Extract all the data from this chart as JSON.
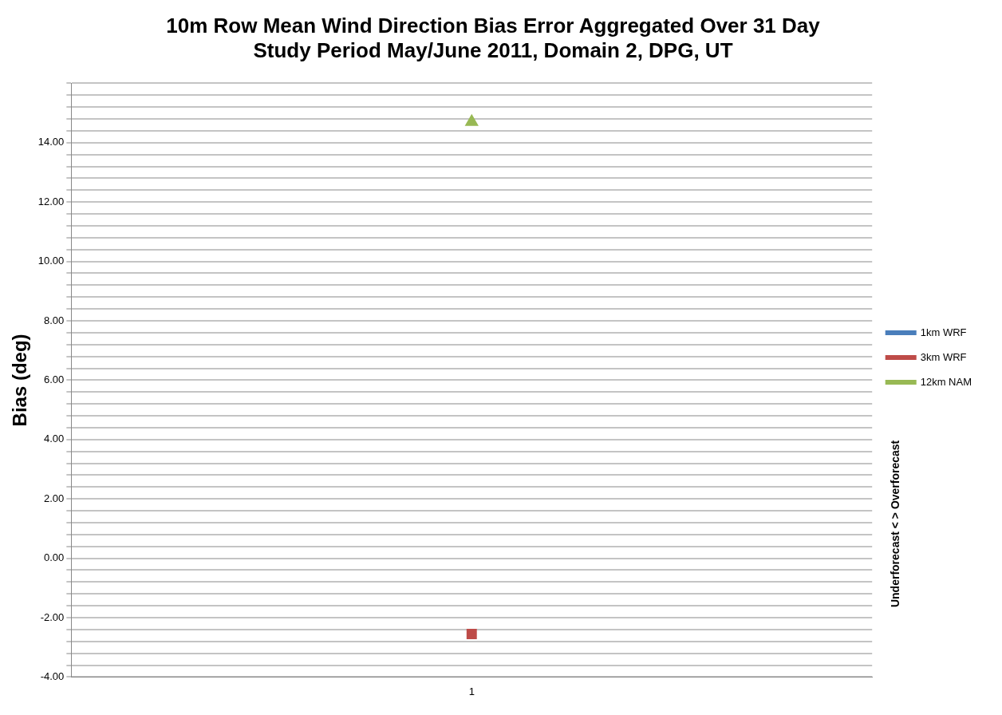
{
  "chart_data": {
    "type": "scatter",
    "title": "10m Row Mean Wind Direction Bias Error Aggregated Over 31 Day\nStudy Period May/June 2011, Domain 2, DPG, UT",
    "ylabel": "Bias (deg)",
    "y2label": "Underforecast < > Overforecast",
    "categories": [
      "1"
    ],
    "series": [
      {
        "name": "1km WRF",
        "color": "#4a7ebb",
        "values": [
          null
        ],
        "marker": "diamond"
      },
      {
        "name": "3km WRF",
        "color": "#be4b48",
        "values": [
          -2.55
        ],
        "marker": "square"
      },
      {
        "name": "12km NAM",
        "color": "#98b954",
        "values": [
          14.7
        ],
        "marker": "triangle"
      }
    ],
    "ylim": [
      -4,
      16
    ],
    "yticks": [
      {
        "value": -4,
        "label": "-4.00"
      },
      {
        "value": -3.6,
        "label": null
      },
      {
        "value": -3.2,
        "label": null
      },
      {
        "value": -2.8,
        "label": null
      },
      {
        "value": -2.4,
        "label": null
      },
      {
        "value": -2,
        "label": "-2.00"
      },
      {
        "value": -1.6,
        "label": null
      },
      {
        "value": -1.2,
        "label": null
      },
      {
        "value": -0.8,
        "label": null
      },
      {
        "value": -0.4,
        "label": null
      },
      {
        "value": 0,
        "label": "0.00"
      },
      {
        "value": 0.4,
        "label": null
      },
      {
        "value": 0.8,
        "label": null
      },
      {
        "value": 1.2,
        "label": null
      },
      {
        "value": 1.6,
        "label": null
      },
      {
        "value": 2,
        "label": "2.00"
      },
      {
        "value": 2.4,
        "label": null
      },
      {
        "value": 2.8,
        "label": null
      },
      {
        "value": 3.2,
        "label": null
      },
      {
        "value": 3.6,
        "label": null
      },
      {
        "value": 4,
        "label": "4.00"
      },
      {
        "value": 4.4,
        "label": null
      },
      {
        "value": 4.8,
        "label": null
      },
      {
        "value": 5.2,
        "label": null
      },
      {
        "value": 5.6,
        "label": null
      },
      {
        "value": 6,
        "label": "6.00"
      },
      {
        "value": 6.4,
        "label": null
      },
      {
        "value": 6.8,
        "label": null
      },
      {
        "value": 7.2,
        "label": null
      },
      {
        "value": 7.6,
        "label": null
      },
      {
        "value": 8,
        "label": "8.00"
      },
      {
        "value": 8.4,
        "label": null
      },
      {
        "value": 8.8,
        "label": null
      },
      {
        "value": 9.2,
        "label": null
      },
      {
        "value": 9.6,
        "label": null
      },
      {
        "value": 10,
        "label": "10.00"
      },
      {
        "value": 10.4,
        "label": null
      },
      {
        "value": 10.8,
        "label": null
      },
      {
        "value": 11.2,
        "label": null
      },
      {
        "value": 11.6,
        "label": null
      },
      {
        "value": 12,
        "label": "12.00"
      },
      {
        "value": 12.4,
        "label": null
      },
      {
        "value": 12.8,
        "label": null
      },
      {
        "value": 13.2,
        "label": null
      },
      {
        "value": 13.6,
        "label": null
      },
      {
        "value": 14,
        "label": "14.00"
      },
      {
        "value": 14.4,
        "label": null
      },
      {
        "value": 14.8,
        "label": null
      },
      {
        "value": 15.2,
        "label": null
      },
      {
        "value": 15.6,
        "label": null
      },
      {
        "value": 16,
        "label": null
      }
    ],
    "grid": "y",
    "legend": "right"
  }
}
